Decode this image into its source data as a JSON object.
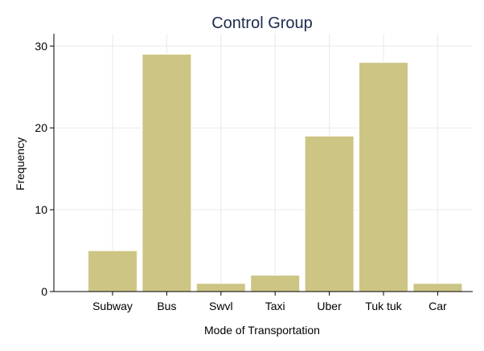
{
  "chart_data": {
    "type": "bar",
    "title": "Control Group",
    "xlabel": "Mode of Transportation",
    "ylabel": "Frequency",
    "categories": [
      "Subway",
      "Bus",
      "Swvl",
      "Taxi",
      "Uber",
      "Tuk tuk",
      "Car"
    ],
    "values": [
      5,
      29,
      1,
      2,
      19,
      28,
      1
    ],
    "ylim": [
      0,
      31.5
    ],
    "yticks": [
      0,
      10,
      20,
      30
    ],
    "grid": true,
    "bar_color": "#cdc584",
    "bar_edge_color": "#ffffff",
    "grid_color": "#eaeaea",
    "title_color": "#1a2b4c"
  }
}
